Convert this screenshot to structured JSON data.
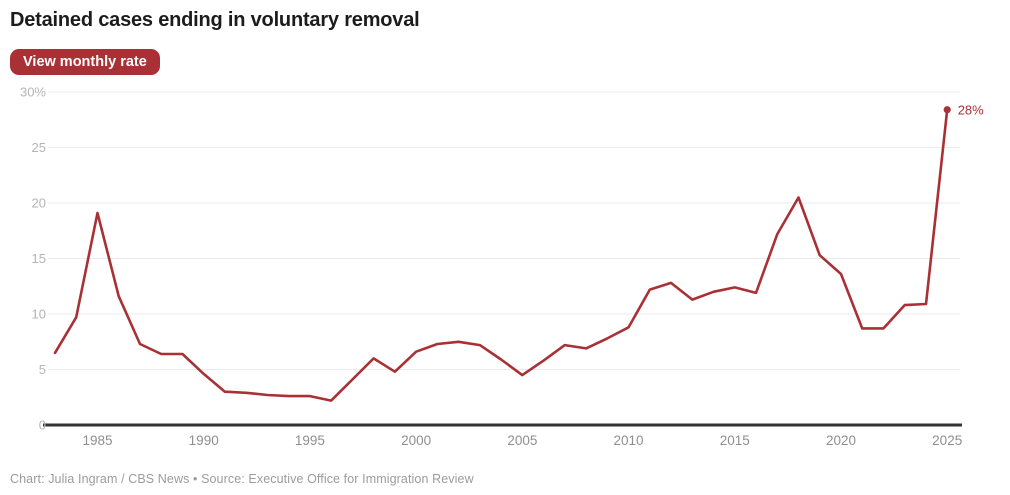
{
  "header": {
    "title": "Detained cases ending in voluntary removal",
    "toggle_label": "View monthly rate"
  },
  "chart_data": {
    "type": "line",
    "title": "Detained cases ending in voluntary removal",
    "xlabel": "",
    "ylabel": "",
    "x": [
      1983,
      1984,
      1985,
      1986,
      1987,
      1988,
      1989,
      1990,
      1991,
      1992,
      1993,
      1994,
      1995,
      1996,
      1997,
      1998,
      1999,
      2000,
      2001,
      2002,
      2003,
      2004,
      2005,
      2006,
      2007,
      2008,
      2009,
      2010,
      2011,
      2012,
      2013,
      2014,
      2015,
      2016,
      2017,
      2018,
      2019,
      2020,
      2021,
      2022,
      2023,
      2024,
      2025
    ],
    "series": [
      {
        "name": "Share of detained cases ending in voluntary removal (%)",
        "values": [
          6.5,
          9.7,
          19.1,
          11.6,
          7.3,
          6.4,
          6.4,
          4.6,
          3.0,
          2.9,
          2.7,
          2.6,
          2.6,
          2.2,
          4.1,
          6.0,
          4.8,
          6.6,
          7.3,
          7.5,
          7.2,
          5.9,
          4.5,
          5.8,
          7.2,
          6.9,
          7.8,
          8.8,
          12.2,
          12.8,
          11.3,
          12.0,
          12.4,
          11.9,
          17.2,
          20.5,
          15.3,
          13.6,
          8.7,
          8.7,
          10.8,
          10.9,
          28.4
        ]
      }
    ],
    "ylim": [
      0,
      30
    ],
    "y_ticks": [
      {
        "value": 30,
        "label": "30%"
      },
      {
        "value": 25,
        "label": "25"
      },
      {
        "value": 20,
        "label": "20"
      },
      {
        "value": 15,
        "label": "15"
      },
      {
        "value": 10,
        "label": "10"
      },
      {
        "value": 5,
        "label": "5"
      },
      {
        "value": 0,
        "label": "0"
      }
    ],
    "x_ticks": [
      1985,
      1990,
      1995,
      2000,
      2005,
      2010,
      2015,
      2020,
      2025
    ],
    "grid": "horizontal",
    "legend": "none",
    "end_annotation": {
      "x": 2025,
      "value": 28.4,
      "label": "28%"
    }
  },
  "footer": {
    "credit": "Chart: Julia Ingram / CBS News • Source: Executive Office for Immigration Review"
  },
  "colors": {
    "accent": "#a93136",
    "axis": "#333333",
    "grid": "#ebebeb",
    "y_tick_text": "#b5b5b5",
    "x_tick_text": "#8f8f8f",
    "title_text": "#1c1c1c",
    "credit_text": "#9c9c9c",
    "background": "#ffffff"
  }
}
